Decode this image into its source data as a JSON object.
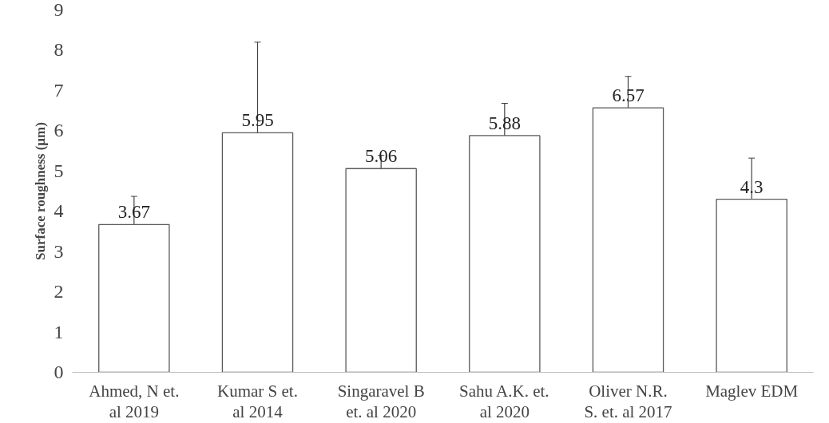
{
  "chart_data": {
    "type": "bar",
    "ylabel": "Surface roughness (µm)",
    "categories": [
      "Ahmed, N et.\nal 2019",
      "Kumar S et.\nal 2014",
      "Singaravel B\net. al 2020",
      "Sahu A.K. et.\nal 2020",
      "Oliver N.R.\nS. et. al 2017",
      "Maglev EDM"
    ],
    "values": [
      3.67,
      5.95,
      5.06,
      5.88,
      6.57,
      4.3
    ],
    "errors": [
      0.7,
      2.25,
      0.33,
      0.8,
      0.78,
      1.02
    ],
    "color": "#ffffff",
    "ylim": [
      0,
      9
    ],
    "yticks": [
      0,
      1,
      2,
      3,
      4,
      5,
      6,
      7,
      8,
      9
    ],
    "data_labels": true,
    "grid": false
  }
}
